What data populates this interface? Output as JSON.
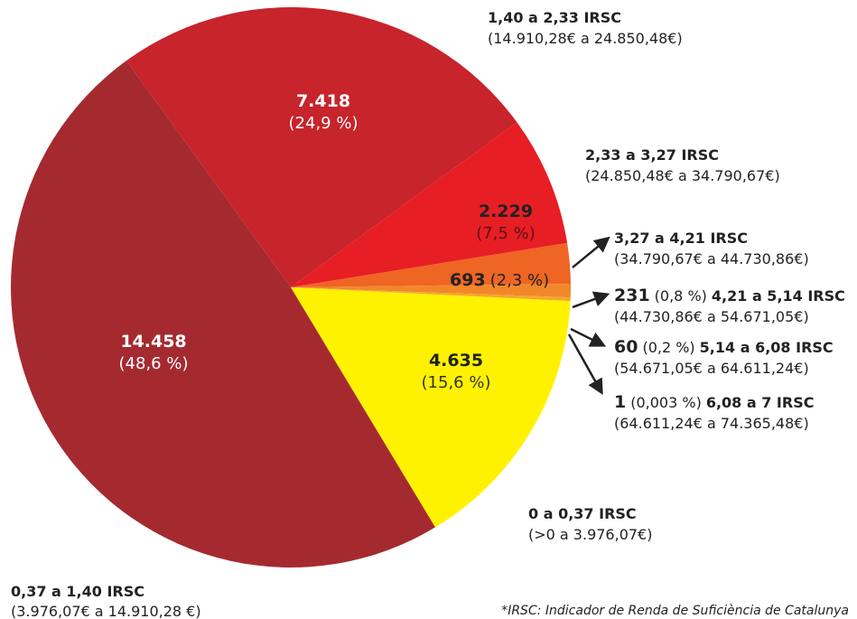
{
  "chart_data": {
    "type": "pie",
    "categories": [
      "0 a 0,37 IRSC",
      "0,37 a 1,40 IRSC",
      "1,40 a 2,33 IRSC",
      "2,33 a 3,27 IRSC",
      "3,27 a 4,21 IRSC",
      "4,21 a 5,14 IRSC",
      "5,14 a 6,08 IRSC",
      "6,08 a 7 IRSC"
    ],
    "ranges": [
      "(>0 a 3.976,07€)",
      "(3.976,07€ a 14.910,28 €)",
      "(14.910,28€ a 24.850,48€)",
      "(24.850,48€ a 34.790,67€)",
      "(34.790,67€ a 44.730,86€)",
      "(44.730,86€ a 54.671,05€)",
      "(54.671,05€ a 64.611,24€)",
      "(64.611,24€ a 74.365,48€)"
    ],
    "values": [
      4635,
      14458,
      7418,
      2229,
      693,
      231,
      60,
      1
    ],
    "value_labels": [
      "4.635",
      "14.458",
      "7.418",
      "2.229",
      "693",
      "231",
      "60",
      "1"
    ],
    "percent_labels": [
      "(15,6 %)",
      "(48,6 %)",
      "(24,9 %)",
      "(7,5 %)",
      "(2,3 %)",
      "(0,8 %)",
      "(0,2 %)",
      "(0,003 %)"
    ],
    "colors": [
      "#fff200",
      "#a52a30",
      "#c7242b",
      "#e81e25",
      "#ef6523",
      "#f2872a",
      "#f6a72a",
      "#f9c623"
    ],
    "note": "*IRSC: Indicador de Renda de Suficiència de Catalunya"
  }
}
